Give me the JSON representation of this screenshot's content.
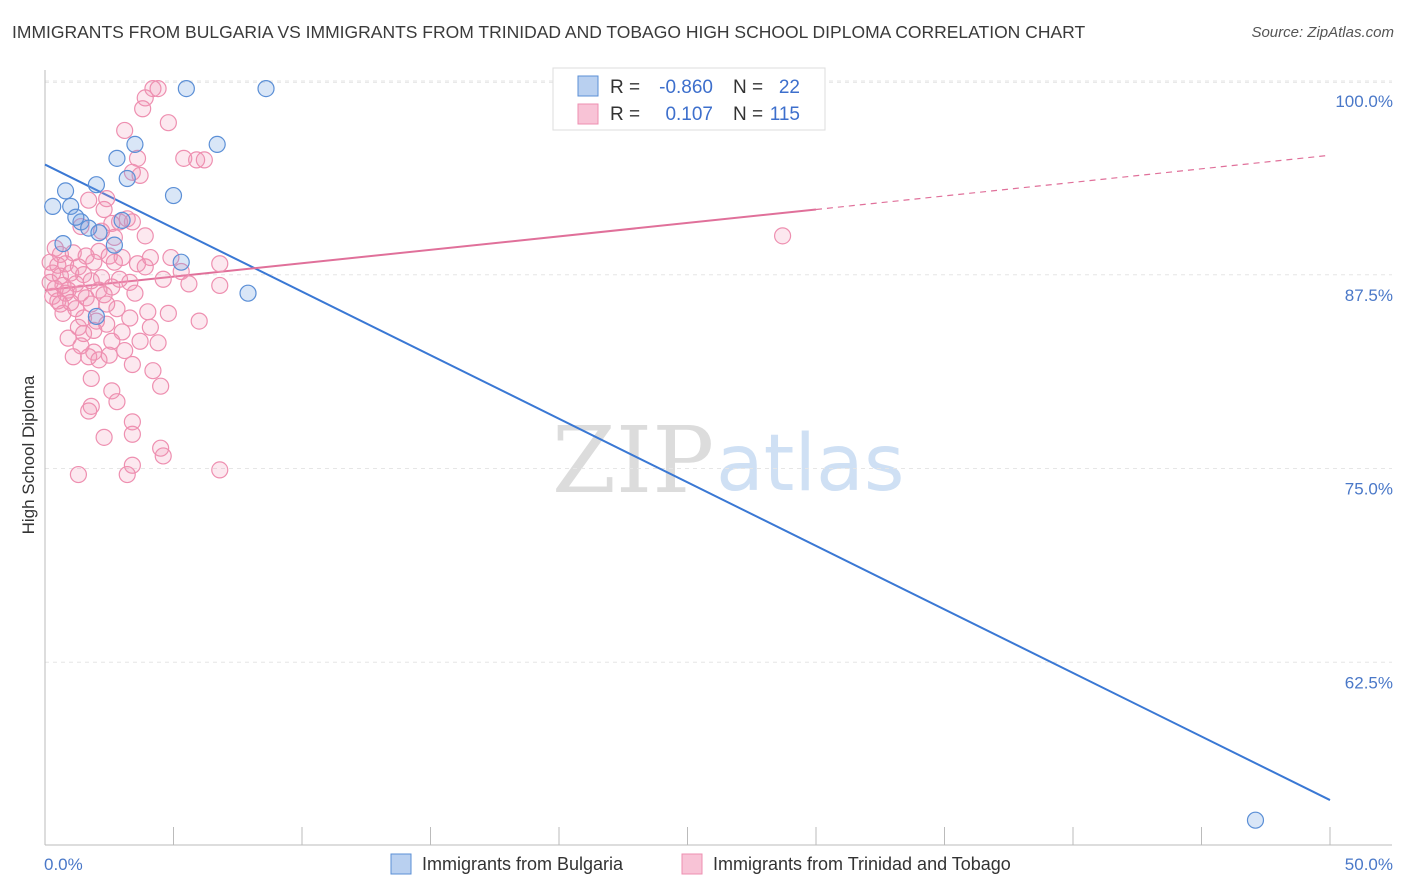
{
  "title": "IMMIGRANTS FROM BULGARIA VS IMMIGRANTS FROM TRINIDAD AND TOBAGO HIGH SCHOOL DIPLOMA CORRELATION CHART",
  "source": "Source: ZipAtlas.com",
  "watermark": {
    "zip": "ZIP",
    "atlas": "atlas"
  },
  "colors": {
    "blue": "#5b8fd6",
    "blue_line": "#3a78d4",
    "pink": "#ee8fb0",
    "pink_line": "#e0709a"
  },
  "legend": {
    "rows": [
      {
        "r_label": "R =",
        "r_value": "-0.860",
        "n_label": "N =",
        "n_value": "22"
      },
      {
        "r_label": "R =",
        "r_value": "0.107",
        "n_label": "N =",
        "n_value": "115"
      }
    ]
  },
  "bottom_legend": [
    "Immigrants from Bulgaria",
    "Immigrants from Trinidad and Tobago"
  ],
  "chart_data": {
    "type": "scatter",
    "ylabel": "High School Diploma",
    "xlim": [
      0,
      50
    ],
    "ylim": [
      52,
      102
    ],
    "x_ticks": [
      "0.0%",
      "50.0%"
    ],
    "y_ticks": [
      {
        "value": 100,
        "label": "100.0%"
      },
      {
        "value": 87.5,
        "label": "87.5%"
      },
      {
        "value": 75,
        "label": "75.0%"
      },
      {
        "value": 62.5,
        "label": "62.5%"
      }
    ],
    "grid": true,
    "series": [
      {
        "name": "Immigrants from Bulgaria",
        "points": [
          [
            0.3,
            93.2
          ],
          [
            0.8,
            94.2
          ],
          [
            1.0,
            93.2
          ],
          [
            1.4,
            92.2
          ],
          [
            1.7,
            91.8
          ],
          [
            2.0,
            94.6
          ],
          [
            2.1,
            91.5
          ],
          [
            2.7,
            90.7
          ],
          [
            2.8,
            96.3
          ],
          [
            3.2,
            95.0
          ],
          [
            3.5,
            97.2
          ],
          [
            5.0,
            93.9
          ],
          [
            5.3,
            89.6
          ],
          [
            5.5,
            100.8
          ],
          [
            6.7,
            97.2
          ],
          [
            7.9,
            87.6
          ],
          [
            8.6,
            100.8
          ],
          [
            2.0,
            86.1
          ],
          [
            0.7,
            90.8
          ],
          [
            1.2,
            92.5
          ],
          [
            3.0,
            92.3
          ],
          [
            47.1,
            53.6
          ]
        ],
        "trend": {
          "x": [
            0,
            50
          ],
          "y": [
            95.9,
            54.9
          ]
        }
      },
      {
        "name": "Immigrants from Trinidad and Tobago",
        "points": [
          [
            4.2,
            100.8
          ],
          [
            4.4,
            100.8
          ],
          [
            3.9,
            100.2
          ],
          [
            3.8,
            99.5
          ],
          [
            4.8,
            98.6
          ],
          [
            3.1,
            98.1
          ],
          [
            5.4,
            96.3
          ],
          [
            5.9,
            96.2
          ],
          [
            6.2,
            96.2
          ],
          [
            3.6,
            96.3
          ],
          [
            3.4,
            95.4
          ],
          [
            3.7,
            95.2
          ],
          [
            2.4,
            93.7
          ],
          [
            2.3,
            93.0
          ],
          [
            1.7,
            93.6
          ],
          [
            3.2,
            92.4
          ],
          [
            3.4,
            92.2
          ],
          [
            2.9,
            92.2
          ],
          [
            2.6,
            92.1
          ],
          [
            2.2,
            91.6
          ],
          [
            1.4,
            91.9
          ],
          [
            3.9,
            91.3
          ],
          [
            2.7,
            91.2
          ],
          [
            0.4,
            90.5
          ],
          [
            0.6,
            90.1
          ],
          [
            1.1,
            90.2
          ],
          [
            1.6,
            90.0
          ],
          [
            2.1,
            90.3
          ],
          [
            2.5,
            90.0
          ],
          [
            3.0,
            89.9
          ],
          [
            3.6,
            89.5
          ],
          [
            4.1,
            89.9
          ],
          [
            4.9,
            89.9
          ],
          [
            0.2,
            89.6
          ],
          [
            0.5,
            89.4
          ],
          [
            0.8,
            89.5
          ],
          [
            1.3,
            89.3
          ],
          [
            1.9,
            89.6
          ],
          [
            2.7,
            89.6
          ],
          [
            3.9,
            89.3
          ],
          [
            5.3,
            89.0
          ],
          [
            6.8,
            89.5
          ],
          [
            0.3,
            88.9
          ],
          [
            0.6,
            88.7
          ],
          [
            1.0,
            88.9
          ],
          [
            1.5,
            88.8
          ],
          [
            2.2,
            88.6
          ],
          [
            2.9,
            88.5
          ],
          [
            4.6,
            88.5
          ],
          [
            0.2,
            88.3
          ],
          [
            0.7,
            88.1
          ],
          [
            1.2,
            88.2
          ],
          [
            1.8,
            88.4
          ],
          [
            2.6,
            88.0
          ],
          [
            3.3,
            88.3
          ],
          [
            6.8,
            88.1
          ],
          [
            0.4,
            87.9
          ],
          [
            0.9,
            87.8
          ],
          [
            1.4,
            87.6
          ],
          [
            2.1,
            87.8
          ],
          [
            0.3,
            87.4
          ],
          [
            0.8,
            87.6
          ],
          [
            1.6,
            87.3
          ],
          [
            2.3,
            87.5
          ],
          [
            3.5,
            87.6
          ],
          [
            0.5,
            87.1
          ],
          [
            1.0,
            87.0
          ],
          [
            1.8,
            86.9
          ],
          [
            2.8,
            86.6
          ],
          [
            4.0,
            86.4
          ],
          [
            1.2,
            86.6
          ],
          [
            0.7,
            86.3
          ],
          [
            1.5,
            86.0
          ],
          [
            2.0,
            85.8
          ],
          [
            3.3,
            86.0
          ],
          [
            4.8,
            86.3
          ],
          [
            1.3,
            85.4
          ],
          [
            1.9,
            85.2
          ],
          [
            2.4,
            85.6
          ],
          [
            3.0,
            85.1
          ],
          [
            4.1,
            85.4
          ],
          [
            0.9,
            84.7
          ],
          [
            2.6,
            84.5
          ],
          [
            3.7,
            84.5
          ],
          [
            4.4,
            84.4
          ],
          [
            1.4,
            84.2
          ],
          [
            1.9,
            83.8
          ],
          [
            2.5,
            83.6
          ],
          [
            3.1,
            83.9
          ],
          [
            1.1,
            83.5
          ],
          [
            1.7,
            83.5
          ],
          [
            2.1,
            83.3
          ],
          [
            3.4,
            83.0
          ],
          [
            4.2,
            82.6
          ],
          [
            1.8,
            82.1
          ],
          [
            4.5,
            81.6
          ],
          [
            2.6,
            81.3
          ],
          [
            2.8,
            80.6
          ],
          [
            1.8,
            80.3
          ],
          [
            1.7,
            80.0
          ],
          [
            3.4,
            79.3
          ],
          [
            2.3,
            78.3
          ],
          [
            3.4,
            78.5
          ],
          [
            4.5,
            77.6
          ],
          [
            4.6,
            77.1
          ],
          [
            3.4,
            76.5
          ],
          [
            1.3,
            75.9
          ],
          [
            3.2,
            75.9
          ],
          [
            6.8,
            76.2
          ],
          [
            28.7,
            91.3
          ],
          [
            6.0,
            85.8
          ],
          [
            5.6,
            88.2
          ],
          [
            0.6,
            86.9
          ],
          [
            1.5,
            85.0
          ],
          [
            2.4,
            86.9
          ]
        ],
        "trend": {
          "x": [
            0,
            30
          ],
          "y": [
            87.8,
            93.0
          ]
        },
        "trend_extension": {
          "x": [
            30,
            50
          ],
          "y": [
            93.0,
            96.5
          ]
        }
      }
    ]
  }
}
